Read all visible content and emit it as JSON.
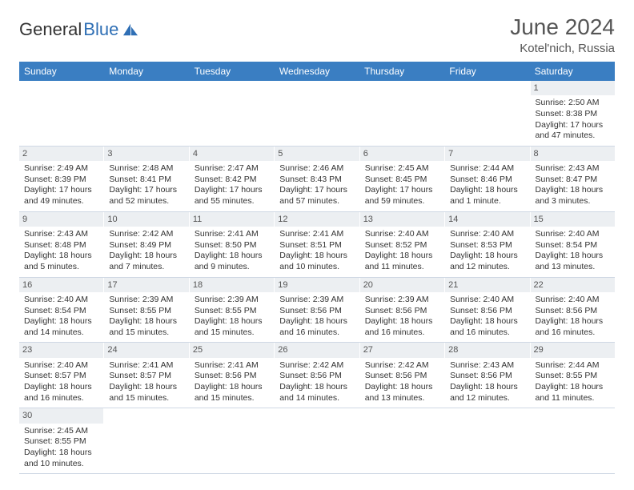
{
  "brand": {
    "text1": "General",
    "text2": "Blue"
  },
  "title": {
    "month": "June 2024",
    "location": "Kotel'nich, Russia"
  },
  "colors": {
    "header_bg": "#3a7ec2",
    "header_text": "#ffffff",
    "daynum_bg": "#eceff2",
    "border": "#cfd8e4",
    "brand_blue": "#2f6fb5",
    "text": "#333333"
  },
  "weekdays": [
    "Sunday",
    "Monday",
    "Tuesday",
    "Wednesday",
    "Thursday",
    "Friday",
    "Saturday"
  ],
  "weeks": [
    [
      {
        "empty": true
      },
      {
        "empty": true
      },
      {
        "empty": true
      },
      {
        "empty": true
      },
      {
        "empty": true
      },
      {
        "empty": true
      },
      {
        "day": "1",
        "sunrise": "Sunrise: 2:50 AM",
        "sunset": "Sunset: 8:38 PM",
        "daylight1": "Daylight: 17 hours",
        "daylight2": "and 47 minutes."
      }
    ],
    [
      {
        "day": "2",
        "sunrise": "Sunrise: 2:49 AM",
        "sunset": "Sunset: 8:39 PM",
        "daylight1": "Daylight: 17 hours",
        "daylight2": "and 49 minutes."
      },
      {
        "day": "3",
        "sunrise": "Sunrise: 2:48 AM",
        "sunset": "Sunset: 8:41 PM",
        "daylight1": "Daylight: 17 hours",
        "daylight2": "and 52 minutes."
      },
      {
        "day": "4",
        "sunrise": "Sunrise: 2:47 AM",
        "sunset": "Sunset: 8:42 PM",
        "daylight1": "Daylight: 17 hours",
        "daylight2": "and 55 minutes."
      },
      {
        "day": "5",
        "sunrise": "Sunrise: 2:46 AM",
        "sunset": "Sunset: 8:43 PM",
        "daylight1": "Daylight: 17 hours",
        "daylight2": "and 57 minutes."
      },
      {
        "day": "6",
        "sunrise": "Sunrise: 2:45 AM",
        "sunset": "Sunset: 8:45 PM",
        "daylight1": "Daylight: 17 hours",
        "daylight2": "and 59 minutes."
      },
      {
        "day": "7",
        "sunrise": "Sunrise: 2:44 AM",
        "sunset": "Sunset: 8:46 PM",
        "daylight1": "Daylight: 18 hours",
        "daylight2": "and 1 minute."
      },
      {
        "day": "8",
        "sunrise": "Sunrise: 2:43 AM",
        "sunset": "Sunset: 8:47 PM",
        "daylight1": "Daylight: 18 hours",
        "daylight2": "and 3 minutes."
      }
    ],
    [
      {
        "day": "9",
        "sunrise": "Sunrise: 2:43 AM",
        "sunset": "Sunset: 8:48 PM",
        "daylight1": "Daylight: 18 hours",
        "daylight2": "and 5 minutes."
      },
      {
        "day": "10",
        "sunrise": "Sunrise: 2:42 AM",
        "sunset": "Sunset: 8:49 PM",
        "daylight1": "Daylight: 18 hours",
        "daylight2": "and 7 minutes."
      },
      {
        "day": "11",
        "sunrise": "Sunrise: 2:41 AM",
        "sunset": "Sunset: 8:50 PM",
        "daylight1": "Daylight: 18 hours",
        "daylight2": "and 9 minutes."
      },
      {
        "day": "12",
        "sunrise": "Sunrise: 2:41 AM",
        "sunset": "Sunset: 8:51 PM",
        "daylight1": "Daylight: 18 hours",
        "daylight2": "and 10 minutes."
      },
      {
        "day": "13",
        "sunrise": "Sunrise: 2:40 AM",
        "sunset": "Sunset: 8:52 PM",
        "daylight1": "Daylight: 18 hours",
        "daylight2": "and 11 minutes."
      },
      {
        "day": "14",
        "sunrise": "Sunrise: 2:40 AM",
        "sunset": "Sunset: 8:53 PM",
        "daylight1": "Daylight: 18 hours",
        "daylight2": "and 12 minutes."
      },
      {
        "day": "15",
        "sunrise": "Sunrise: 2:40 AM",
        "sunset": "Sunset: 8:54 PM",
        "daylight1": "Daylight: 18 hours",
        "daylight2": "and 13 minutes."
      }
    ],
    [
      {
        "day": "16",
        "sunrise": "Sunrise: 2:40 AM",
        "sunset": "Sunset: 8:54 PM",
        "daylight1": "Daylight: 18 hours",
        "daylight2": "and 14 minutes."
      },
      {
        "day": "17",
        "sunrise": "Sunrise: 2:39 AM",
        "sunset": "Sunset: 8:55 PM",
        "daylight1": "Daylight: 18 hours",
        "daylight2": "and 15 minutes."
      },
      {
        "day": "18",
        "sunrise": "Sunrise: 2:39 AM",
        "sunset": "Sunset: 8:55 PM",
        "daylight1": "Daylight: 18 hours",
        "daylight2": "and 15 minutes."
      },
      {
        "day": "19",
        "sunrise": "Sunrise: 2:39 AM",
        "sunset": "Sunset: 8:56 PM",
        "daylight1": "Daylight: 18 hours",
        "daylight2": "and 16 minutes."
      },
      {
        "day": "20",
        "sunrise": "Sunrise: 2:39 AM",
        "sunset": "Sunset: 8:56 PM",
        "daylight1": "Daylight: 18 hours",
        "daylight2": "and 16 minutes."
      },
      {
        "day": "21",
        "sunrise": "Sunrise: 2:40 AM",
        "sunset": "Sunset: 8:56 PM",
        "daylight1": "Daylight: 18 hours",
        "daylight2": "and 16 minutes."
      },
      {
        "day": "22",
        "sunrise": "Sunrise: 2:40 AM",
        "sunset": "Sunset: 8:56 PM",
        "daylight1": "Daylight: 18 hours",
        "daylight2": "and 16 minutes."
      }
    ],
    [
      {
        "day": "23",
        "sunrise": "Sunrise: 2:40 AM",
        "sunset": "Sunset: 8:57 PM",
        "daylight1": "Daylight: 18 hours",
        "daylight2": "and 16 minutes."
      },
      {
        "day": "24",
        "sunrise": "Sunrise: 2:41 AM",
        "sunset": "Sunset: 8:57 PM",
        "daylight1": "Daylight: 18 hours",
        "daylight2": "and 15 minutes."
      },
      {
        "day": "25",
        "sunrise": "Sunrise: 2:41 AM",
        "sunset": "Sunset: 8:56 PM",
        "daylight1": "Daylight: 18 hours",
        "daylight2": "and 15 minutes."
      },
      {
        "day": "26",
        "sunrise": "Sunrise: 2:42 AM",
        "sunset": "Sunset: 8:56 PM",
        "daylight1": "Daylight: 18 hours",
        "daylight2": "and 14 minutes."
      },
      {
        "day": "27",
        "sunrise": "Sunrise: 2:42 AM",
        "sunset": "Sunset: 8:56 PM",
        "daylight1": "Daylight: 18 hours",
        "daylight2": "and 13 minutes."
      },
      {
        "day": "28",
        "sunrise": "Sunrise: 2:43 AM",
        "sunset": "Sunset: 8:56 PM",
        "daylight1": "Daylight: 18 hours",
        "daylight2": "and 12 minutes."
      },
      {
        "day": "29",
        "sunrise": "Sunrise: 2:44 AM",
        "sunset": "Sunset: 8:55 PM",
        "daylight1": "Daylight: 18 hours",
        "daylight2": "and 11 minutes."
      }
    ],
    [
      {
        "day": "30",
        "sunrise": "Sunrise: 2:45 AM",
        "sunset": "Sunset: 8:55 PM",
        "daylight1": "Daylight: 18 hours",
        "daylight2": "and 10 minutes."
      },
      {
        "empty": true
      },
      {
        "empty": true
      },
      {
        "empty": true
      },
      {
        "empty": true
      },
      {
        "empty": true
      },
      {
        "empty": true
      }
    ]
  ]
}
